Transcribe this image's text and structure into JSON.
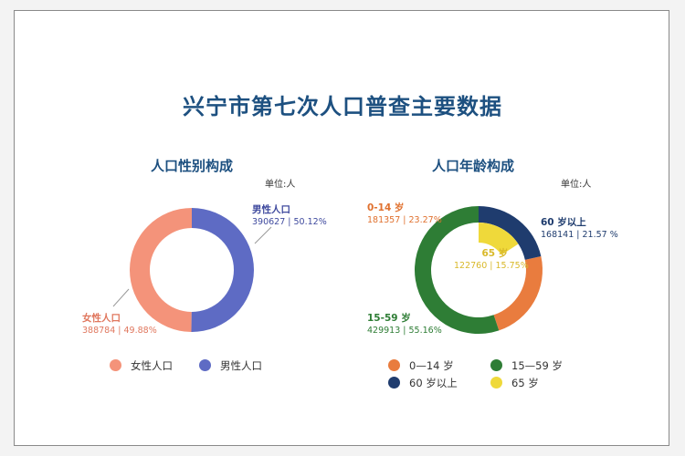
{
  "title": "兴宁市第七次人口普查主要数据",
  "chart_data": [
    {
      "type": "pie",
      "title": "人口性别构成",
      "unit": "单位:人",
      "series": [
        {
          "name": "女性人口",
          "value": 388784,
          "percent": "49.88%",
          "color": "#f4937a"
        },
        {
          "name": "男性人口",
          "value": 390627,
          "percent": "50.12%",
          "color": "#5e6bc4"
        }
      ],
      "legend": [
        "女性人口",
        "男性人口"
      ]
    },
    {
      "type": "pie",
      "title": "人口年龄构成",
      "unit": "单位:人",
      "series": [
        {
          "name": "0-14 岁",
          "value": 181357,
          "percent": "23.27%",
          "color": "#e97c3e"
        },
        {
          "name": "15-59 岁",
          "value": 429913,
          "percent": "55.16%",
          "color": "#2e7d35"
        },
        {
          "name": "60 岁以上",
          "value": 168141,
          "percent": "21.57 %",
          "color": "#1f3c6e"
        }
      ],
      "sub_series": {
        "name": "65 岁",
        "value": 122760,
        "percent": "15.75%",
        "color": "#efd93a"
      },
      "legend": [
        "0—14 岁",
        "15—59 岁",
        "60 岁以上",
        "65 岁"
      ]
    }
  ],
  "labels": {
    "female": {
      "name": "女性人口",
      "value": "388784 | 49.88%"
    },
    "male": {
      "name": "男性人口",
      "value": "390627 | 50.12%"
    },
    "age_0_14": {
      "name": "0-14 岁",
      "value": "181357 | 23.27%"
    },
    "age_60": {
      "name": "60 岁以上",
      "value": "168141 | 21.57 %"
    },
    "age_65": {
      "name": "65 岁",
      "value": "122760 | 15.75%"
    },
    "age_15_59": {
      "name": "15-59 岁",
      "value": "429913 | 55.16%"
    }
  },
  "legend_gender": [
    "女性人口",
    "男性人口"
  ],
  "legend_age": [
    "0—14 岁",
    "15—59 岁",
    "60 岁以上",
    "65 岁"
  ]
}
